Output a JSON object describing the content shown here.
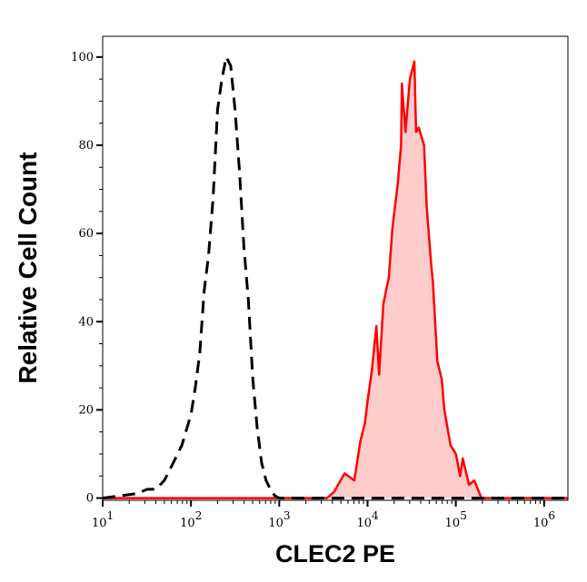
{
  "chart_data": {
    "type": "line",
    "title": "",
    "xlabel": "CLEC2 PE",
    "ylabel": "Relative Cell Count",
    "x_scale": "log",
    "xlim": [
      10,
      1860000
    ],
    "ylim": [
      -0.5,
      104.7
    ],
    "x_ticks": [
      {
        "base": "10",
        "exp": "1"
      },
      {
        "base": "10",
        "exp": "2"
      },
      {
        "base": "10",
        "exp": "3"
      },
      {
        "base": "10",
        "exp": "4"
      },
      {
        "base": "10",
        "exp": "5"
      },
      {
        "base": "10",
        "exp": "6"
      }
    ],
    "y_ticks": [
      "0",
      "20",
      "40",
      "60",
      "80",
      "100"
    ],
    "grid": false,
    "legend": "none",
    "series": [
      {
        "style": "dashed",
        "color": "#000000",
        "fill": "none",
        "x": [
          10,
          24,
          32,
          40,
          50,
          63,
          79,
          100,
          112,
          126,
          141,
          158,
          178,
          200,
          224,
          251,
          282,
          316,
          355,
          398,
          447,
          501,
          562,
          631,
          708,
          794,
          891,
          1000,
          1860000
        ],
        "y": [
          0,
          1,
          2,
          2,
          4,
          8,
          12,
          19,
          25,
          33,
          47,
          55,
          68,
          88,
          95,
          100,
          98,
          88,
          74,
          57,
          45,
          27,
          16,
          8,
          4,
          2,
          0.5,
          0,
          0
        ]
      },
      {
        "style": "solid",
        "color": "#ff0000",
        "fill": "#ffcccc",
        "x": [
          10,
          3470,
          4170,
          5500,
          7080,
          8320,
          9330,
          10000,
          11200,
          12600,
          13500,
          15100,
          16200,
          17400,
          19100,
          20400,
          21900,
          24000,
          24500,
          26900,
          30200,
          33900,
          35500,
          38000,
          43700,
          46800,
          52500,
          55000,
          61700,
          69200,
          74100,
          87100,
          100000,
          112000,
          120000,
          141000,
          162000,
          195000,
          1860000
        ],
        "y": [
          0,
          0,
          1.4,
          5.6,
          4,
          13,
          17,
          22,
          29,
          39,
          28,
          44,
          47,
          50,
          61,
          66,
          71,
          80,
          94,
          83,
          95,
          99,
          83,
          84,
          80,
          66,
          53,
          49,
          31,
          27,
          20,
          12,
          10,
          5,
          9,
          3,
          4,
          0,
          0
        ]
      }
    ]
  }
}
